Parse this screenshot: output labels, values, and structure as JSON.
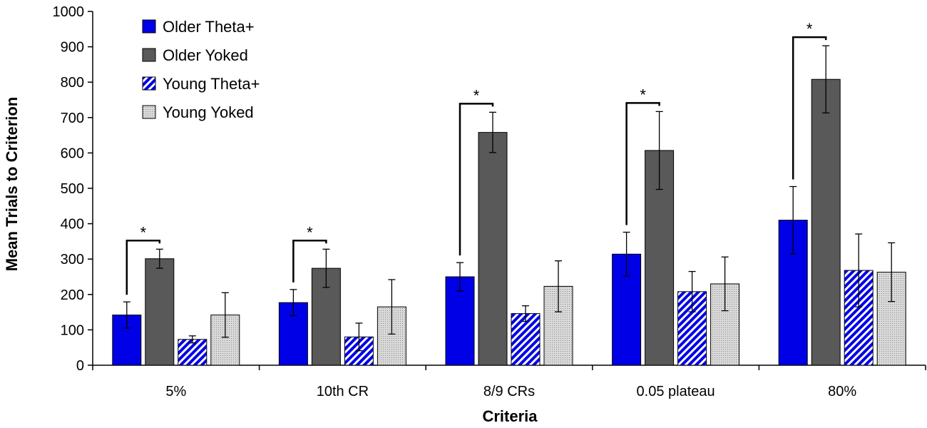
{
  "chart_data": {
    "type": "bar",
    "title": "",
    "xlabel": "Criteria",
    "ylabel": "Mean Trials to Criterion",
    "ylim": [
      0,
      1000
    ],
    "yticks": [
      0,
      100,
      200,
      300,
      400,
      500,
      600,
      700,
      800,
      900,
      1000
    ],
    "ytick_labels": [
      "0",
      "100",
      "200",
      "300",
      "400",
      "500",
      "600",
      "700",
      "800",
      "900",
      "1000"
    ],
    "categories": [
      "5%",
      "10th CR",
      "8/9 CRs",
      "0.05 plateau",
      "80%"
    ],
    "legend_position": "top-left",
    "series": [
      {
        "name": "Older Theta+",
        "color": "#0000e6",
        "pattern": "solid",
        "values": [
          142,
          177,
          250,
          314,
          410
        ],
        "errors": [
          37,
          37,
          40,
          62,
          95
        ]
      },
      {
        "name": "Older Yoked",
        "color": "#595959",
        "pattern": "solid",
        "values": [
          301,
          274,
          658,
          607,
          808
        ],
        "errors": [
          27,
          54,
          57,
          110,
          95
        ]
      },
      {
        "name": "Young Theta+",
        "color": "#0000e6",
        "pattern": "diagonal-stripes",
        "values": [
          73,
          80,
          146,
          208,
          268
        ],
        "errors": [
          10,
          39,
          22,
          57,
          103
        ]
      },
      {
        "name": "Young Yoked",
        "color": "#bdbdbd",
        "pattern": "dots",
        "values": [
          142,
          165,
          223,
          230,
          263
        ],
        "errors": [
          63,
          77,
          72,
          76,
          83
        ]
      }
    ],
    "significance": [
      {
        "category": "5%",
        "label": "*"
      },
      {
        "category": "10th CR",
        "label": "*"
      },
      {
        "category": "8/9 CRs",
        "label": "*"
      },
      {
        "category": "0.05 plateau",
        "label": "*"
      },
      {
        "category": "80%",
        "label": "*"
      }
    ]
  }
}
